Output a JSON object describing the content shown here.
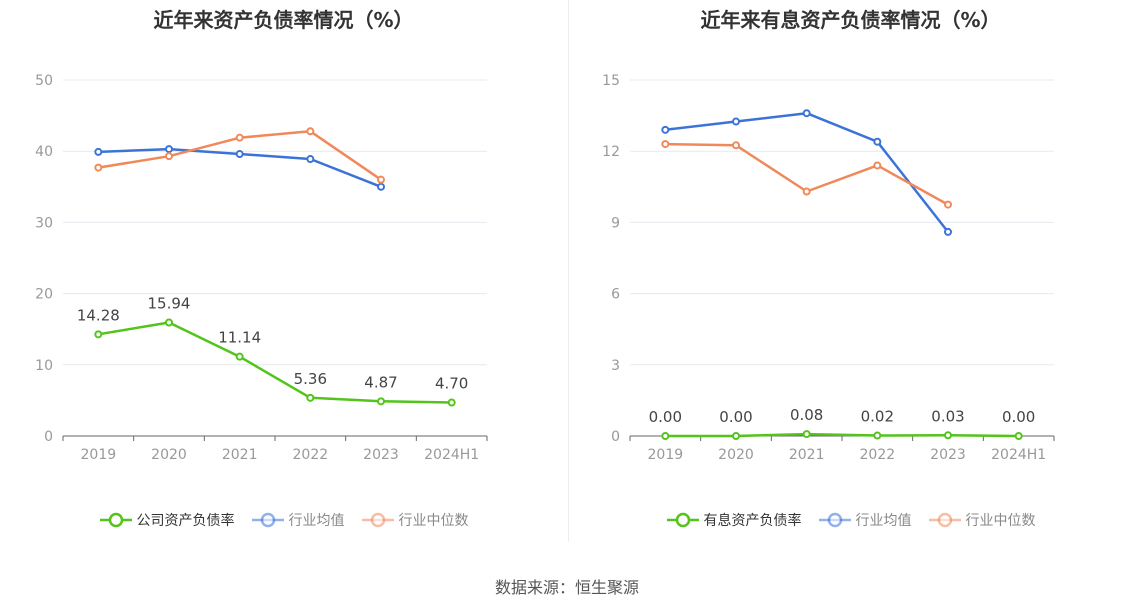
{
  "charts": [
    {
      "id": "left",
      "title": "近年来资产负债率情况（%）",
      "chart_data": {
        "type": "line",
        "title": "近年来资产负债率情况（%）",
        "categories": [
          "2019",
          "2020",
          "2021",
          "2022",
          "2023",
          "2024H1"
        ],
        "ylim": [
          0,
          50
        ],
        "yticks": [
          0,
          10,
          20,
          30,
          40,
          50
        ],
        "grid": true,
        "legend_position": "bottom",
        "series": [
          {
            "name": "公司资产负债率",
            "color": "#52c41a",
            "values": [
              14.28,
              15.94,
              11.14,
              5.36,
              4.87,
              4.7
            ],
            "labels": [
              "14.28",
              "15.94",
              "11.14",
              "5.36",
              "4.87",
              "4.70"
            ]
          },
          {
            "name": "行业均值",
            "color": "#3b73d9",
            "values": [
              39.9,
              40.3,
              39.6,
              38.9,
              35.0,
              null
            ]
          },
          {
            "name": "行业中位数",
            "color": "#f0895a",
            "values": [
              37.7,
              39.3,
              41.9,
              42.8,
              36.0,
              null
            ]
          }
        ]
      }
    },
    {
      "id": "right",
      "title": "近年来有息资产负债率情况（%）",
      "chart_data": {
        "type": "line",
        "title": "近年来有息资产负债率情况（%）",
        "categories": [
          "2019",
          "2020",
          "2021",
          "2022",
          "2023",
          "2024H1"
        ],
        "ylim": [
          0,
          15
        ],
        "yticks": [
          0,
          3,
          6,
          9,
          12,
          15
        ],
        "grid": true,
        "legend_position": "bottom",
        "series": [
          {
            "name": "有息资产负债率",
            "color": "#52c41a",
            "values": [
              0.0,
              0.0,
              0.08,
              0.02,
              0.03,
              0.0
            ],
            "labels": [
              "0.00",
              "0.00",
              "0.08",
              "0.02",
              "0.03",
              "0.00"
            ]
          },
          {
            "name": "行业均值",
            "color": "#3b73d9",
            "values": [
              12.9,
              13.25,
              13.6,
              12.4,
              8.6,
              null
            ]
          },
          {
            "name": "行业中位数",
            "color": "#f0895a",
            "values": [
              12.3,
              12.25,
              10.3,
              11.4,
              9.75,
              null
            ]
          }
        ]
      }
    }
  ],
  "source": "数据来源：恒生聚源"
}
